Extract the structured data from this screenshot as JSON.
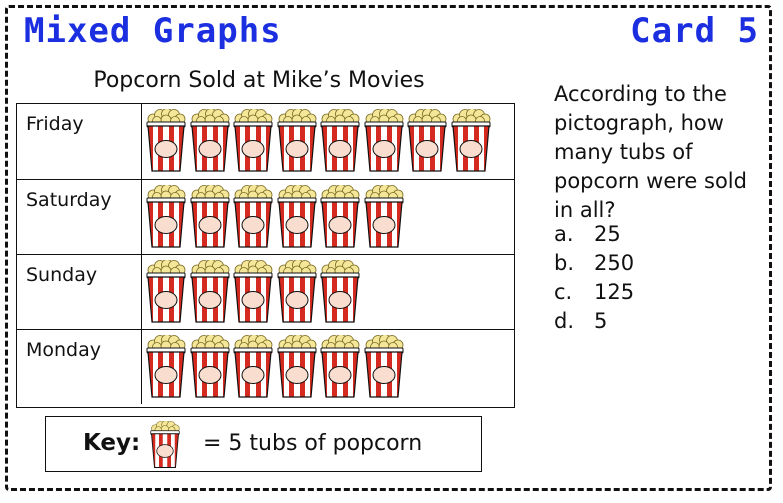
{
  "header": {
    "left_title": "Mixed Graphs",
    "right_title": "Card 5"
  },
  "chart_data": {
    "type": "pictograph",
    "title": "Popcorn Sold at Mike’s Movies",
    "icon": "popcorn-tub-icon",
    "categories": [
      "Friday",
      "Saturday",
      "Sunday",
      "Monday"
    ],
    "values": [
      8,
      6,
      5,
      6
    ],
    "key": {
      "label": "Key:",
      "text": "= 5 tubs of popcorn",
      "units_per_icon": 5
    }
  },
  "question": {
    "text": "According to the pictograph, how many tubs of popcorn were sold in all?",
    "options": [
      {
        "letter": "a.",
        "value": "25"
      },
      {
        "letter": "b.",
        "value": "250"
      },
      {
        "letter": "c.",
        "value": "125"
      },
      {
        "letter": "d.",
        "value": "5"
      }
    ]
  },
  "colors": {
    "title_blue": "#1c2fe0",
    "stripe_red": "#d42a20",
    "popcorn_yellow": "#f4e79a",
    "label_cream": "#f9ded0"
  }
}
